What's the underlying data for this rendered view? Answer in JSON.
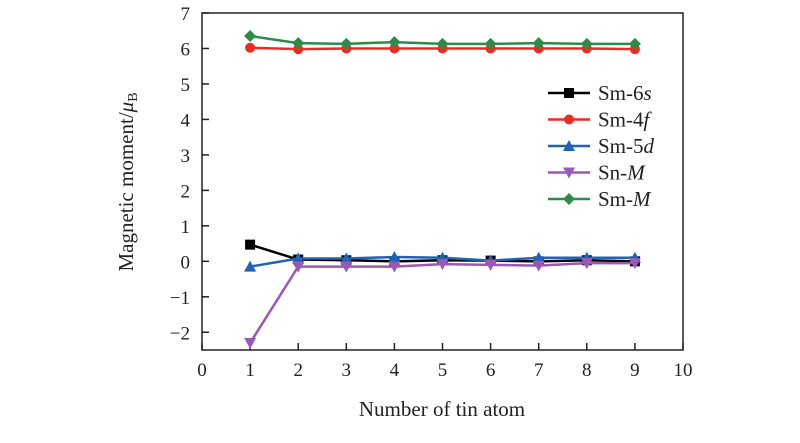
{
  "chart_data": {
    "type": "line",
    "title": "",
    "xlabel": "Number of tin atom",
    "ylabel": "Magnetic moment/μB",
    "xlim": [
      0,
      10
    ],
    "ylim": [
      -2.5,
      7
    ],
    "xticks": [
      0,
      1,
      2,
      3,
      4,
      5,
      6,
      7,
      8,
      9,
      10
    ],
    "yticks": [
      -2,
      -1,
      0,
      1,
      2,
      3,
      4,
      5,
      6,
      7
    ],
    "legend_position": "right",
    "x": [
      1,
      2,
      3,
      4,
      5,
      6,
      7,
      8,
      9
    ],
    "series": [
      {
        "name": "Sm-6s",
        "prefix": "Sm-6",
        "suffix": "s",
        "color": "#000000",
        "marker": "square",
        "values": [
          0.47,
          0.05,
          0.03,
          0.0,
          0.03,
          0.02,
          0.0,
          0.03,
          0.0
        ]
      },
      {
        "name": "Sm-4f",
        "prefix": "Sm-4",
        "suffix": "f",
        "color": "#ee2a24",
        "marker": "circle",
        "values": [
          6.02,
          5.98,
          6.0,
          6.0,
          6.0,
          6.0,
          6.0,
          6.0,
          5.98
        ]
      },
      {
        "name": "Sm-5d",
        "prefix": "Sm-5",
        "suffix": "d",
        "color": "#1f63b8",
        "marker": "triangle-up",
        "values": [
          -0.15,
          0.08,
          0.08,
          0.12,
          0.1,
          0.02,
          0.1,
          0.1,
          0.1
        ]
      },
      {
        "name": "Sn-M",
        "prefix": "Sn-",
        "suffix": "M",
        "color": "#9b59b6",
        "marker": "triangle-down",
        "values": [
          -2.3,
          -0.15,
          -0.15,
          -0.15,
          -0.08,
          -0.1,
          -0.12,
          -0.05,
          -0.05
        ]
      },
      {
        "name": "Sm-M",
        "prefix": "Sm-",
        "suffix": "M",
        "color": "#2e8b47",
        "marker": "diamond",
        "values": [
          6.35,
          6.15,
          6.13,
          6.18,
          6.13,
          6.13,
          6.15,
          6.13,
          6.13
        ]
      }
    ]
  }
}
